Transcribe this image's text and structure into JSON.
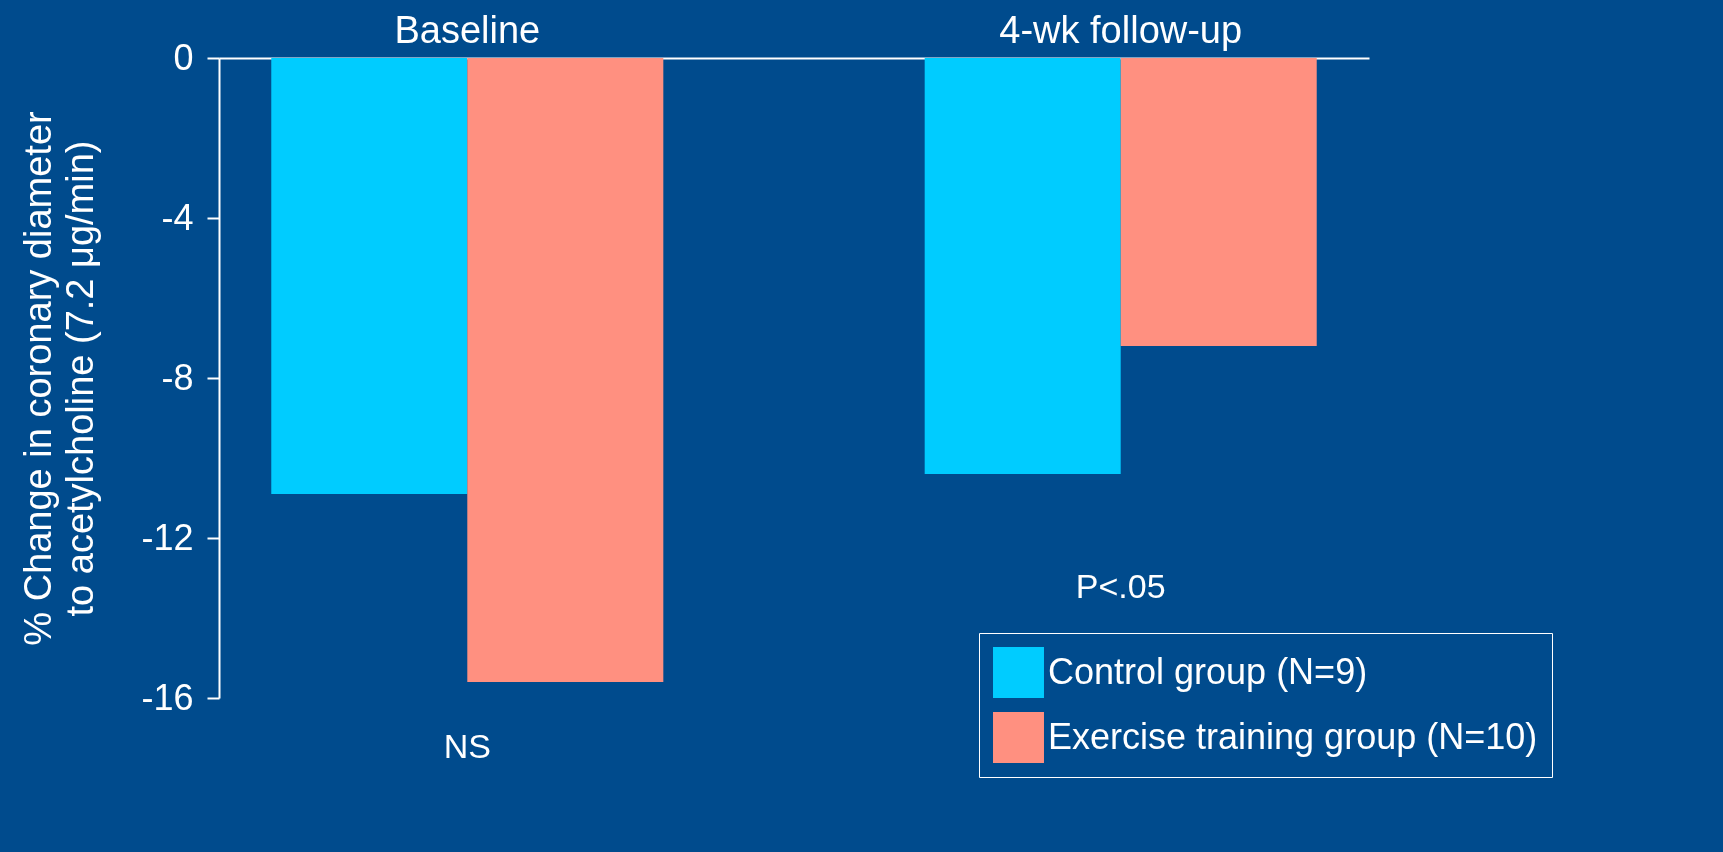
{
  "chart_data": {
    "type": "bar",
    "ylabel": "% Change in coronary diameter\nto acetylcholine (7.2 μg/min)",
    "categories": [
      "Baseline",
      "4-wk follow-up"
    ],
    "series": [
      {
        "name": "Control group (N=9)",
        "color": "#00ccff",
        "values": [
          -10.9,
          -10.4
        ]
      },
      {
        "name": "Exercise training group (N=10)",
        "color": "#ff9080",
        "values": [
          -15.6,
          -7.2
        ]
      }
    ],
    "ylim": [
      -16,
      0
    ],
    "yticks": [
      0,
      -4,
      -8,
      -12,
      -16
    ],
    "grid": false,
    "legend": "bottom right",
    "annotations": [
      "NS",
      "P<.05"
    ]
  }
}
